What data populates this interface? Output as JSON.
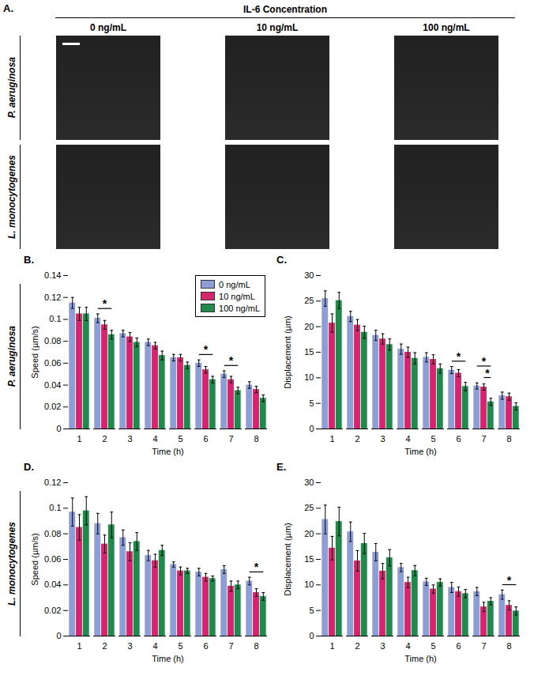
{
  "panel_a": {
    "letter": "A.",
    "title": "IL-6 Concentration",
    "columns": [
      "0 ng/mL",
      "10 ng/mL",
      "100 ng/mL"
    ],
    "rows": [
      "P. aeruginosa",
      "L. monocytogenes"
    ]
  },
  "chart_data": [
    {
      "panel": "B.",
      "type": "bar",
      "row_label": "P. aeruginosa",
      "xlabel": "Time (h)",
      "ylabel": "Speed (µm/s)",
      "categories": [
        1,
        2,
        3,
        4,
        5,
        6,
        7,
        8
      ],
      "ylim": [
        0,
        0.14
      ],
      "yticks": [
        0,
        0.02,
        0.04,
        0.06,
        0.08,
        0.1,
        0.12,
        0.14
      ],
      "legend": "upper right",
      "series": [
        {
          "name": "0 ng/mL",
          "color": "#8e9dd6",
          "values": [
            0.115,
            0.101,
            0.087,
            0.079,
            0.065,
            0.06,
            0.05,
            0.04
          ],
          "errors": [
            0.005,
            0.004,
            0.003,
            0.003,
            0.003,
            0.003,
            0.003,
            0.003
          ]
        },
        {
          "name": "10 ng/mL",
          "color": "#d4266f",
          "values": [
            0.105,
            0.095,
            0.084,
            0.076,
            0.065,
            0.054,
            0.045,
            0.036
          ],
          "errors": [
            0.006,
            0.004,
            0.004,
            0.003,
            0.003,
            0.003,
            0.003,
            0.003
          ]
        },
        {
          "name": "100 ng/mL",
          "color": "#1f8a4c",
          "values": [
            0.105,
            0.086,
            0.079,
            0.067,
            0.058,
            0.045,
            0.035,
            0.028
          ],
          "errors": [
            0.006,
            0.004,
            0.004,
            0.004,
            0.003,
            0.003,
            0.003,
            0.003
          ]
        }
      ],
      "significance": [
        {
          "x": 2,
          "between": [
            "0 ng/mL",
            "100 ng/mL"
          ],
          "label": "*"
        },
        {
          "x": 6,
          "between": [
            "0 ng/mL",
            "100 ng/mL"
          ],
          "label": "*"
        },
        {
          "x": 7,
          "between": [
            "0 ng/mL",
            "100 ng/mL"
          ],
          "label": "*"
        }
      ]
    },
    {
      "panel": "C.",
      "type": "bar",
      "row_label": "P. aeruginosa",
      "xlabel": "Time (h)",
      "ylabel": "Displacement (µm)",
      "categories": [
        1,
        2,
        3,
        4,
        5,
        6,
        7,
        8
      ],
      "ylim": [
        0,
        30
      ],
      "yticks": [
        0,
        5,
        10,
        15,
        20,
        25,
        30
      ],
      "series": [
        {
          "name": "0 ng/mL",
          "color": "#8e9dd6",
          "values": [
            25.5,
            22.0,
            18.3,
            15.6,
            14.0,
            11.5,
            8.4,
            6.5
          ],
          "errors": [
            1.5,
            1.0,
            1.0,
            1.0,
            0.9,
            0.7,
            0.6,
            0.7
          ]
        },
        {
          "name": "10 ng/mL",
          "color": "#d4266f",
          "values": [
            20.7,
            20.3,
            17.6,
            15.0,
            13.6,
            10.9,
            8.2,
            6.3
          ],
          "errors": [
            1.8,
            1.1,
            1.0,
            1.0,
            0.9,
            0.7,
            0.6,
            0.7
          ]
        },
        {
          "name": "100 ng/mL",
          "color": "#1f8a4c",
          "values": [
            25.1,
            18.9,
            16.5,
            13.8,
            11.8,
            8.3,
            5.3,
            4.4
          ],
          "errors": [
            1.6,
            1.2,
            1.1,
            1.1,
            0.9,
            0.8,
            0.7,
            0.7
          ]
        }
      ],
      "significance": [
        {
          "x": 6,
          "between": [
            "0 ng/mL",
            "100 ng/mL"
          ],
          "label": "*"
        },
        {
          "x": 7,
          "between": [
            "0 ng/mL",
            "100 ng/mL"
          ],
          "label": "*"
        },
        {
          "x": 7,
          "between": [
            "10 ng/mL",
            "100 ng/mL"
          ],
          "label": "*"
        }
      ]
    },
    {
      "panel": "D.",
      "type": "bar",
      "row_label": "L. monocytogenes",
      "xlabel": "Time (h)",
      "ylabel": "Speed (µm/s)",
      "categories": [
        1,
        2,
        3,
        4,
        5,
        6,
        7,
        8
      ],
      "ylim": [
        0,
        0.12
      ],
      "yticks": [
        0,
        0.02,
        0.04,
        0.06,
        0.08,
        0.1,
        0.12
      ],
      "series": [
        {
          "name": "0 ng/mL",
          "color": "#8e9dd6",
          "values": [
            0.097,
            0.088,
            0.077,
            0.063,
            0.056,
            0.05,
            0.052,
            0.043
          ],
          "errors": [
            0.011,
            0.008,
            0.006,
            0.004,
            0.002,
            0.003,
            0.003,
            0.003
          ]
        },
        {
          "name": "10 ng/mL",
          "color": "#d4266f",
          "values": [
            0.085,
            0.072,
            0.066,
            0.059,
            0.051,
            0.046,
            0.039,
            0.034
          ],
          "errors": [
            0.01,
            0.007,
            0.007,
            0.005,
            0.003,
            0.003,
            0.004,
            0.003
          ]
        },
        {
          "name": "100 ng/mL",
          "color": "#1f8a4c",
          "values": [
            0.098,
            0.087,
            0.074,
            0.067,
            0.051,
            0.045,
            0.04,
            0.031
          ],
          "errors": [
            0.011,
            0.01,
            0.007,
            0.004,
            0.002,
            0.002,
            0.003,
            0.003
          ]
        }
      ],
      "significance": [
        {
          "x": 8,
          "between": [
            "0 ng/mL",
            "100 ng/mL"
          ],
          "label": "*"
        }
      ]
    },
    {
      "panel": "E.",
      "type": "bar",
      "row_label": "L. monocytogenes",
      "xlabel": "Time (h)",
      "ylabel": "Displacement (µm)",
      "categories": [
        1,
        2,
        3,
        4,
        5,
        6,
        7,
        8
      ],
      "ylim": [
        0,
        30
      ],
      "yticks": [
        0,
        5,
        10,
        15,
        20,
        25,
        30
      ],
      "series": [
        {
          "name": "0 ng/mL",
          "color": "#8e9dd6",
          "values": [
            22.8,
            20.4,
            16.4,
            13.4,
            10.6,
            9.5,
            8.7,
            8.1
          ],
          "errors": [
            2.8,
            1.9,
            1.7,
            0.8,
            0.7,
            1.0,
            0.8,
            0.9
          ]
        },
        {
          "name": "10 ng/mL",
          "color": "#d4266f",
          "values": [
            17.2,
            14.7,
            12.7,
            10.5,
            9.2,
            8.7,
            5.7,
            6.0
          ],
          "errors": [
            2.3,
            2.0,
            1.5,
            1.0,
            0.8,
            0.9,
            0.9,
            0.9
          ]
        },
        {
          "name": "100 ng/mL",
          "color": "#1f8a4c",
          "values": [
            22.4,
            18.1,
            15.3,
            12.8,
            10.5,
            8.3,
            6.8,
            4.9
          ],
          "errors": [
            2.8,
            2.0,
            1.6,
            1.0,
            0.7,
            0.8,
            0.7,
            0.8
          ]
        }
      ],
      "significance": [
        {
          "x": 8,
          "between": [
            "0 ng/mL",
            "100 ng/mL"
          ],
          "label": "*"
        }
      ]
    }
  ]
}
